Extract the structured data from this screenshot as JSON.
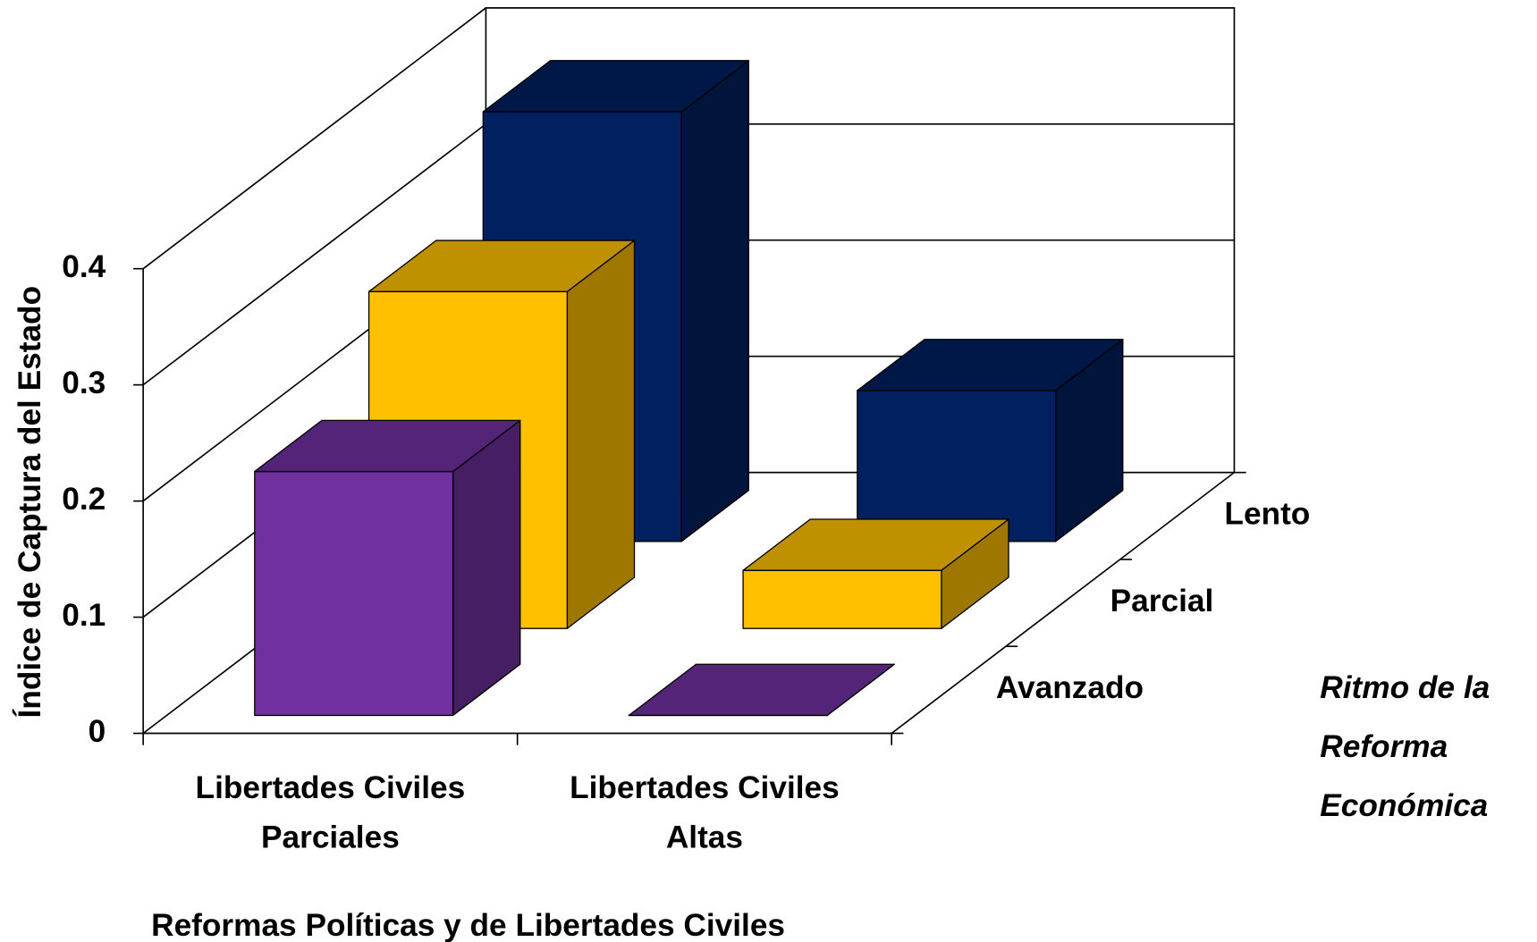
{
  "chart_data": {
    "type": "bar3d",
    "y_label": "Índice de Captura del Estado",
    "x_label": "Reformas Políticas y de Libertades Civiles",
    "depth_label": "Ritmo de la Reforma Económica",
    "categories": [
      "Libertades Civiles Parciales",
      "Libertades Civiles Altas"
    ],
    "series": [
      {
        "name": "Avanzado",
        "color": "#7030A0",
        "values": [
          0.21,
          0
        ]
      },
      {
        "name": "Parcial",
        "color": "#FFC000",
        "values": [
          0.29,
          0.05
        ]
      },
      {
        "name": "Lento",
        "color": "#002060",
        "values": [
          0.37,
          0.13
        ]
      }
    ],
    "ylim": [
      0,
      0.4
    ],
    "yticks": [
      0,
      0.1,
      0.2,
      0.3,
      0.4
    ],
    "grid": true
  }
}
